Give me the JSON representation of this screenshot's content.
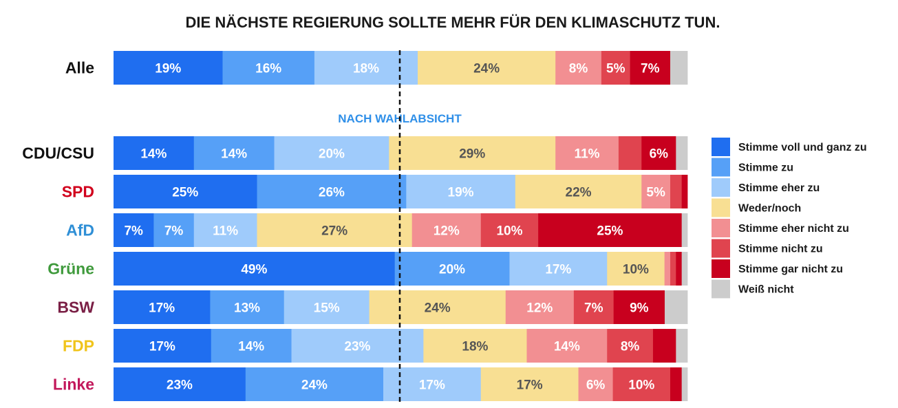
{
  "chart_data": {
    "type": "bar",
    "orientation": "horizontal",
    "stacked": true,
    "title": "DIE NÄCHSTE REGIERUNG SOLLTE MEHR FÜR DEN KLIMASCHUTZ TUN.",
    "subtitle": "NACH WAHLABSICHT",
    "legend_position": "right",
    "value_unit": "%",
    "series": [
      {
        "name": "Stimme voll und ganz zu",
        "color": "#1f6ef0",
        "label_color": "#ffffff"
      },
      {
        "name": "Stimme zu",
        "color": "#56a0f7",
        "label_color": "#ffffff"
      },
      {
        "name": "Stimme eher zu",
        "color": "#9fcbfb",
        "label_color": "#ffffff"
      },
      {
        "name": "Weder/noch",
        "color": "#f8df93",
        "label_color": "#555555"
      },
      {
        "name": "Stimme eher nicht zu",
        "color": "#f28f92",
        "label_color": "#ffffff"
      },
      {
        "name": "Stimme nicht zu",
        "color": "#e0444f",
        "label_color": "#ffffff"
      },
      {
        "name": "Stimme gar nicht zu",
        "color": "#c8001e",
        "label_color": "#ffffff"
      },
      {
        "name": "Weiß nicht",
        "color": "#cccccc",
        "label_color": "#555555"
      }
    ],
    "rows": [
      {
        "label": "Alle",
        "label_color": "#111111",
        "values": [
          19,
          16,
          18,
          24,
          8,
          5,
          7,
          3
        ]
      },
      {
        "label": "CDU/CSU",
        "label_color": "#111111",
        "values": [
          14,
          14,
          20,
          29,
          11,
          4,
          6,
          2
        ]
      },
      {
        "label": "SPD",
        "label_color": "#d1001c",
        "values": [
          25,
          26,
          19,
          22,
          5,
          2,
          1,
          0
        ]
      },
      {
        "label": "AfD",
        "label_color": "#2f8fd6",
        "values": [
          7,
          7,
          11,
          27,
          12,
          10,
          25,
          1
        ]
      },
      {
        "label": "Grüne",
        "label_color": "#3f9a3c",
        "values": [
          49,
          20,
          17,
          10,
          1,
          1,
          1,
          1
        ]
      },
      {
        "label": "BSW",
        "label_color": "#7a1f45",
        "values": [
          17,
          13,
          15,
          24,
          12,
          7,
          9,
          4
        ]
      },
      {
        "label": "FDP",
        "label_color": "#f0c41b",
        "values": [
          17,
          14,
          23,
          18,
          14,
          8,
          4,
          2
        ]
      },
      {
        "label": "Linke",
        "label_color": "#c2185b",
        "values": [
          23,
          24,
          17,
          17,
          6,
          10,
          2,
          1
        ]
      }
    ]
  }
}
